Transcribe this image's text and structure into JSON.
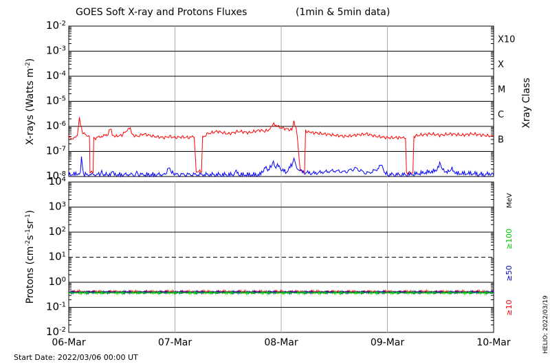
{
  "chart_data": [
    {
      "type": "line",
      "panel": "xray",
      "title": "GOES Soft X-ray and Protons Fluxes",
      "subtitle": "(1min & 5min data)",
      "xlabel": "",
      "x_ticks": [
        "06-Mar",
        "07-Mar",
        "08-Mar",
        "09-Mar",
        "10-Mar"
      ],
      "xlim": [
        "2022-03-06",
        "2022-03-10"
      ],
      "ylabel_main": "X-rays (Watts m",
      "ylabel_sup": "-2",
      "ylabel_close": ")",
      "yscale": "log",
      "ylim_exp": [
        -8,
        -2
      ],
      "y_tick_exps": [
        -8,
        -7,
        -6,
        -5,
        -4,
        -3,
        -2
      ],
      "right_axis_label": "Xray Class",
      "class_labels": [
        {
          "label": "B",
          "exp": -7
        },
        {
          "label": "C",
          "exp": -6
        },
        {
          "label": "M",
          "exp": -5
        },
        {
          "label": "X",
          "exp": -4
        },
        {
          "label": "X10",
          "exp": -3
        }
      ],
      "series": [
        {
          "color": "#ff0000",
          "description": "long channel",
          "points": [
            [
              0,
              -6.45
            ],
            [
              0.05,
              -6.5
            ],
            [
              0.08,
              -6.35
            ],
            [
              0.09,
              -6.05
            ],
            [
              0.1,
              -5.65
            ],
            [
              0.11,
              -5.9
            ],
            [
              0.13,
              -6.25
            ],
            [
              0.16,
              -6.35
            ],
            [
              0.18,
              -6.4
            ],
            [
              0.195,
              -6.45
            ],
            [
              0.2,
              -7.85
            ],
            [
              0.23,
              -7.85
            ],
            [
              0.235,
              -6.5
            ],
            [
              0.27,
              -6.45
            ],
            [
              0.3,
              -6.4
            ],
            [
              0.33,
              -6.35
            ],
            [
              0.36,
              -6.4
            ],
            [
              0.38,
              -6.2
            ],
            [
              0.39,
              -6.05
            ],
            [
              0.41,
              -6.3
            ],
            [
              0.44,
              -6.4
            ],
            [
              0.5,
              -6.35
            ],
            [
              0.55,
              -6.15
            ],
            [
              0.58,
              -6.1
            ],
            [
              0.6,
              -6.35
            ],
            [
              0.65,
              -6.4
            ],
            [
              0.7,
              -6.3
            ],
            [
              0.75,
              -6.35
            ],
            [
              0.8,
              -6.4
            ],
            [
              0.9,
              -6.45
            ],
            [
              0.95,
              -6.4
            ],
            [
              1.0,
              -6.45
            ],
            [
              1.05,
              -6.42
            ],
            [
              1.15,
              -6.45
            ],
            [
              1.18,
              -6.4
            ],
            [
              1.2,
              -7.8
            ],
            [
              1.25,
              -7.8
            ],
            [
              1.26,
              -6.45
            ],
            [
              1.3,
              -6.3
            ],
            [
              1.35,
              -6.25
            ],
            [
              1.4,
              -6.2
            ],
            [
              1.5,
              -6.3
            ],
            [
              1.6,
              -6.2
            ],
            [
              1.7,
              -6.25
            ],
            [
              1.8,
              -6.15
            ],
            [
              1.85,
              -6.2
            ],
            [
              1.9,
              -6.1
            ],
            [
              1.93,
              -5.85
            ],
            [
              1.96,
              -6.0
            ],
            [
              2.0,
              -6.05
            ],
            [
              2.05,
              -6.1
            ],
            [
              2.1,
              -6.15
            ],
            [
              2.12,
              -5.8
            ],
            [
              2.14,
              -6.1
            ],
            [
              2.15,
              -6.3
            ],
            [
              2.18,
              -7.8
            ],
            [
              2.22,
              -7.8
            ],
            [
              2.23,
              -6.2
            ],
            [
              2.3,
              -6.25
            ],
            [
              2.4,
              -6.3
            ],
            [
              2.5,
              -6.35
            ],
            [
              2.6,
              -6.4
            ],
            [
              2.7,
              -6.35
            ],
            [
              2.8,
              -6.3
            ],
            [
              2.9,
              -6.4
            ],
            [
              3.0,
              -6.45
            ],
            [
              3.1,
              -6.45
            ],
            [
              3.17,
              -6.45
            ],
            [
              3.18,
              -7.85
            ],
            [
              3.24,
              -7.85
            ],
            [
              3.25,
              -6.4
            ],
            [
              3.3,
              -6.35
            ],
            [
              3.4,
              -6.3
            ],
            [
              3.5,
              -6.35
            ],
            [
              3.6,
              -6.3
            ],
            [
              3.7,
              -6.35
            ],
            [
              3.8,
              -6.3
            ],
            [
              3.9,
              -6.35
            ],
            [
              4.0,
              -6.4
            ]
          ]
        },
        {
          "color": "#0000ff",
          "description": "short channel",
          "points": [
            [
              0.0,
              -8.0
            ],
            [
              0.1,
              -7.95
            ],
            [
              0.11,
              -7.9
            ],
            [
              0.12,
              -7.3
            ],
            [
              0.13,
              -7.75
            ],
            [
              0.14,
              -8.0
            ],
            [
              0.3,
              -8.0
            ],
            [
              0.31,
              -7.85
            ],
            [
              0.32,
              -8.0
            ],
            [
              0.4,
              -8.0
            ],
            [
              0.42,
              -7.9
            ],
            [
              0.43,
              -8.0
            ],
            [
              0.62,
              -8.0
            ],
            [
              0.64,
              -7.8
            ],
            [
              0.66,
              -8.0
            ],
            [
              0.9,
              -8.0
            ],
            [
              0.93,
              -7.85
            ],
            [
              0.95,
              -7.75
            ],
            [
              0.97,
              -7.9
            ],
            [
              1.0,
              -8.0
            ],
            [
              1.55,
              -8.0
            ],
            [
              1.57,
              -7.8
            ],
            [
              1.6,
              -8.0
            ],
            [
              1.8,
              -8.0
            ],
            [
              1.85,
              -7.7
            ],
            [
              1.88,
              -7.85
            ],
            [
              1.92,
              -7.5
            ],
            [
              1.95,
              -7.7
            ],
            [
              1.98,
              -7.6
            ],
            [
              2.0,
              -7.8
            ],
            [
              2.05,
              -7.9
            ],
            [
              2.1,
              -7.6
            ],
            [
              2.12,
              -7.35
            ],
            [
              2.14,
              -7.7
            ],
            [
              2.2,
              -7.9
            ],
            [
              2.3,
              -7.95
            ],
            [
              2.5,
              -7.85
            ],
            [
              2.6,
              -7.9
            ],
            [
              2.7,
              -7.75
            ],
            [
              2.75,
              -7.85
            ],
            [
              2.8,
              -7.95
            ],
            [
              2.85,
              -7.9
            ],
            [
              2.9,
              -7.8
            ],
            [
              2.95,
              -7.6
            ],
            [
              2.97,
              -7.85
            ],
            [
              3.0,
              -8.0
            ],
            [
              3.2,
              -8.0
            ],
            [
              3.3,
              -7.95
            ],
            [
              3.45,
              -7.85
            ],
            [
              3.5,
              -7.55
            ],
            [
              3.52,
              -7.8
            ],
            [
              3.58,
              -7.9
            ],
            [
              3.6,
              -7.75
            ],
            [
              3.65,
              -7.95
            ],
            [
              3.8,
              -7.95
            ],
            [
              3.9,
              -8.0
            ],
            [
              4.0,
              -7.95
            ]
          ]
        }
      ]
    },
    {
      "type": "line",
      "panel": "protons",
      "xlim": [
        "2022-03-06",
        "2022-03-10"
      ],
      "ylabel_main": "Protons (cm",
      "ylabel_sup1": "-2",
      "ylabel_s": "s",
      "ylabel_sup2": "-1",
      "ylabel_sr": "sr",
      "ylabel_sup3": "-1",
      "ylabel_close": ")",
      "yscale": "log",
      "ylim_exp": [
        -2,
        4
      ],
      "y_tick_exps": [
        -2,
        -1,
        0,
        1,
        2,
        3,
        4
      ],
      "dashed_threshold_exp": 1,
      "right_unit": "MeV",
      "series": [
        {
          "name": "≥10",
          "color": "#ff0000",
          "approx_value": 0.42
        },
        {
          "name": "≥50",
          "color": "#0000cc",
          "approx_value": 0.4
        },
        {
          "name": "≥100",
          "color": "#00cc00",
          "approx_value": 0.38
        }
      ]
    }
  ],
  "footer": {
    "start_date": "Start Date: 2022/03/06 00:00 UT",
    "credit": "HELIO: 2022/03/19"
  }
}
